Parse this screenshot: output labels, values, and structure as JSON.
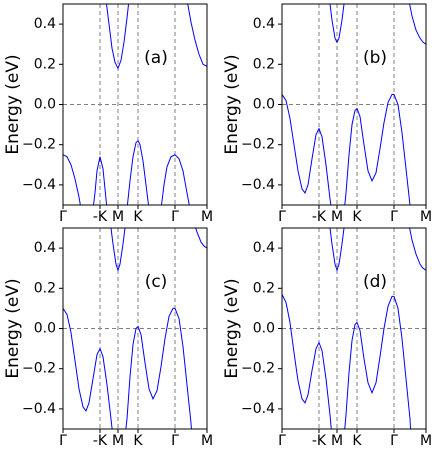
{
  "chart_data": [
    {
      "type": "line",
      "annotation": "(a)",
      "ylabel": "Energy (eV)",
      "xlim": [
        0,
        144
      ],
      "ylim": [
        -0.5,
        0.5
      ],
      "xticks": [
        {
          "value": 0,
          "label": "Γ"
        },
        {
          "value": 37,
          "label": "-K"
        },
        {
          "value": 55,
          "label": "M"
        },
        {
          "value": 75,
          "label": "K"
        },
        {
          "value": 112,
          "label": "Γ"
        },
        {
          "value": 144,
          "label": "M"
        }
      ],
      "yticks": [
        {
          "value": -0.4,
          "label": "−0.4"
        },
        {
          "value": -0.2,
          "label": "−0.2"
        },
        {
          "value": 0,
          "label": "0.0"
        },
        0.2,
        0.4
      ],
      "hline": 0,
      "vlines": [
        37,
        55,
        75,
        112
      ],
      "series": [
        {
          "color": "#0000ff",
          "x": [
            0,
            4,
            8,
            12,
            16,
            18,
            null,
            30,
            32,
            34,
            37,
            40,
            42,
            44,
            null,
            64,
            67,
            70,
            73,
            75,
            77,
            80,
            83,
            86,
            null,
            98,
            101,
            104,
            108,
            112,
            116,
            120,
            124,
            127
          ],
          "values": [
            -0.25,
            -0.26,
            -0.3,
            -0.37,
            -0.46,
            -0.52,
            null,
            -0.52,
            -0.44,
            -0.33,
            -0.26,
            -0.32,
            -0.42,
            -0.52,
            null,
            -0.52,
            -0.38,
            -0.26,
            -0.19,
            -0.18,
            -0.2,
            -0.28,
            -0.4,
            -0.52,
            null,
            -0.52,
            -0.4,
            -0.31,
            -0.26,
            -0.25,
            -0.27,
            -0.33,
            -0.44,
            -0.52
          ]
        },
        {
          "color": "#0000ff",
          "x": [
            43,
            46,
            49,
            52,
            55,
            58,
            61,
            64,
            66,
            null,
            124,
            128,
            132,
            136,
            140,
            144
          ],
          "values": [
            0.52,
            0.4,
            0.28,
            0.21,
            0.18,
            0.22,
            0.31,
            0.43,
            0.52,
            null,
            0.52,
            0.41,
            0.32,
            0.25,
            0.2,
            0.19
          ]
        }
      ]
    },
    {
      "type": "line",
      "annotation": "(b)",
      "ylabel": "Energy (eV)",
      "xlim": [
        0,
        144
      ],
      "ylim": [
        -0.5,
        0.5
      ],
      "xticks": [
        {
          "value": 0,
          "label": "Γ"
        },
        {
          "value": 37,
          "label": "-K"
        },
        {
          "value": 55,
          "label": "M"
        },
        {
          "value": 75,
          "label": "K"
        },
        {
          "value": 112,
          "label": "Γ"
        },
        {
          "value": 144,
          "label": "M"
        }
      ],
      "yticks": [
        {
          "value": -0.4,
          "label": "−0.4"
        },
        {
          "value": -0.2,
          "label": "−0.2"
        },
        {
          "value": 0,
          "label": "0.0"
        },
        0.2,
        0.4
      ],
      "hline": 0,
      "vlines": [
        37,
        55,
        75,
        112
      ],
      "series": [
        {
          "color": "#0000ff",
          "x": [
            0,
            4,
            8,
            12,
            16,
            20,
            23,
            26,
            30,
            34,
            37,
            40,
            44,
            48,
            50,
            null,
            62,
            64,
            67,
            70,
            73,
            75,
            78,
            82,
            86,
            90,
            94,
            98,
            102,
            106,
            110,
            112,
            116,
            120,
            124,
            128,
            129
          ],
          "values": [
            0.05,
            0.02,
            -0.07,
            -0.2,
            -0.33,
            -0.42,
            -0.44,
            -0.4,
            -0.27,
            -0.15,
            -0.12,
            -0.16,
            -0.3,
            -0.47,
            -0.54,
            null,
            -0.54,
            -0.44,
            -0.25,
            -0.1,
            -0.03,
            -0.02,
            -0.06,
            -0.2,
            -0.33,
            -0.38,
            -0.34,
            -0.22,
            -0.09,
            0.01,
            0.05,
            0.05,
            0,
            -0.14,
            -0.32,
            -0.5,
            -0.54
          ]
        },
        {
          "color": "#0000ff",
          "x": [
            47,
            50,
            53,
            55,
            57,
            60,
            63,
            null,
            126,
            130,
            134,
            138,
            141,
            144
          ],
          "values": [
            0.54,
            0.42,
            0.33,
            0.31,
            0.33,
            0.42,
            0.54,
            null,
            0.54,
            0.44,
            0.37,
            0.33,
            0.31,
            0.3
          ]
        }
      ]
    },
    {
      "type": "line",
      "annotation": "(c)",
      "ylabel": "Energy (eV)",
      "xlim": [
        0,
        144
      ],
      "ylim": [
        -0.5,
        0.5
      ],
      "xticks": [
        {
          "value": 0,
          "label": "Γ"
        },
        {
          "value": 37,
          "label": "-K"
        },
        {
          "value": 55,
          "label": "M"
        },
        {
          "value": 75,
          "label": "K"
        },
        {
          "value": 112,
          "label": "Γ"
        },
        {
          "value": 144,
          "label": "M"
        }
      ],
      "yticks": [
        {
          "value": -0.4,
          "label": "−0.4"
        },
        {
          "value": -0.2,
          "label": "−0.2"
        },
        {
          "value": 0,
          "label": "0.0"
        },
        0.2,
        0.4
      ],
      "hline": 0,
      "vlines": [
        37,
        55,
        75,
        112
      ],
      "series": [
        {
          "color": "#0000ff",
          "x": [
            0,
            4,
            8,
            12,
            16,
            20,
            23,
            26,
            30,
            34,
            37,
            40,
            44,
            48,
            50,
            null,
            62,
            64,
            67,
            70,
            73,
            75,
            78,
            82,
            86,
            90,
            94,
            98,
            102,
            106,
            110,
            112,
            116,
            120,
            124,
            128,
            129
          ],
          "values": [
            0.1,
            0.07,
            -0.02,
            -0.16,
            -0.3,
            -0.39,
            -0.41,
            -0.37,
            -0.25,
            -0.13,
            -0.1,
            -0.14,
            -0.28,
            -0.45,
            -0.54,
            null,
            -0.54,
            -0.45,
            -0.24,
            -0.08,
            0,
            0.01,
            -0.03,
            -0.17,
            -0.3,
            -0.35,
            -0.31,
            -0.19,
            -0.05,
            0.06,
            0.1,
            0.1,
            0.05,
            -0.09,
            -0.28,
            -0.47,
            -0.54
          ]
        },
        {
          "color": "#0000ff",
          "x": [
            47,
            50,
            53,
            55,
            57,
            60,
            63,
            null,
            130,
            134,
            138,
            141,
            144
          ],
          "values": [
            0.54,
            0.42,
            0.32,
            0.29,
            0.32,
            0.42,
            0.54,
            null,
            0.54,
            0.48,
            0.43,
            0.41,
            0.4
          ]
        }
      ]
    },
    {
      "type": "line",
      "annotation": "(d)",
      "ylabel": "Energy (eV)",
      "xlim": [
        0,
        144
      ],
      "ylim": [
        -0.5,
        0.5
      ],
      "xticks": [
        {
          "value": 0,
          "label": "Γ"
        },
        {
          "value": 37,
          "label": "-K"
        },
        {
          "value": 55,
          "label": "M"
        },
        {
          "value": 75,
          "label": "K"
        },
        {
          "value": 112,
          "label": "Γ"
        },
        {
          "value": 144,
          "label": "M"
        }
      ],
      "yticks": [
        {
          "value": -0.4,
          "label": "−0.4"
        },
        {
          "value": -0.2,
          "label": "−0.2"
        },
        {
          "value": 0,
          "label": "0.0"
        },
        0.2,
        0.4
      ],
      "hline": 0,
      "vlines": [
        37,
        55,
        75,
        112
      ],
      "series": [
        {
          "color": "#0000ff",
          "x": [
            0,
            4,
            8,
            12,
            16,
            20,
            23,
            26,
            30,
            34,
            37,
            40,
            44,
            48,
            50,
            null,
            62,
            64,
            67,
            70,
            73,
            75,
            78,
            82,
            86,
            90,
            94,
            98,
            102,
            106,
            110,
            112,
            116,
            120,
            124,
            128,
            129
          ],
          "values": [
            0.17,
            0.13,
            0.03,
            -0.12,
            -0.26,
            -0.35,
            -0.37,
            -0.33,
            -0.21,
            -0.1,
            -0.07,
            -0.11,
            -0.25,
            -0.43,
            -0.54,
            null,
            -0.54,
            -0.43,
            -0.22,
            -0.06,
            0.02,
            0.03,
            -0.01,
            -0.15,
            -0.27,
            -0.32,
            -0.27,
            -0.14,
            0,
            0.11,
            0.16,
            0.16,
            0.1,
            -0.05,
            -0.25,
            -0.45,
            -0.54
          ]
        },
        {
          "color": "#0000ff",
          "x": [
            47,
            50,
            53,
            55,
            57,
            60,
            63,
            null,
            126,
            130,
            134,
            138,
            141,
            144
          ],
          "values": [
            0.54,
            0.42,
            0.32,
            0.29,
            0.32,
            0.42,
            0.54,
            null,
            0.54,
            0.44,
            0.37,
            0.32,
            0.3,
            0.29
          ]
        }
      ]
    }
  ]
}
